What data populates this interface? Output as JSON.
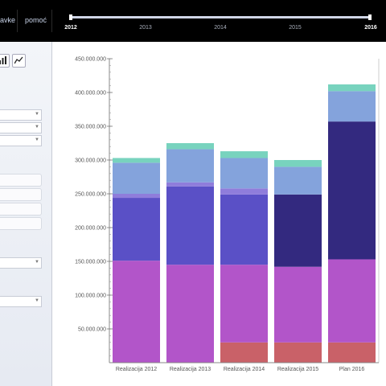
{
  "nav": {
    "item1": "avke",
    "item2": "pomoć"
  },
  "timeline": {
    "years": [
      "2012",
      "2013",
      "2014",
      "2015",
      "2016"
    ],
    "selected_start": "2012",
    "selected_end": "2016"
  },
  "toolbar": {
    "bar_icon": "bar-chart-icon",
    "line_icon": "line-chart-icon"
  },
  "chart_data": {
    "type": "bar",
    "stacked": true,
    "categories": [
      "Realizacija 2012",
      "Realizacija 2013",
      "Realizacija 2014",
      "Realizacija 2015",
      "Plan 2016"
    ],
    "ylim": [
      0,
      450000000
    ],
    "yticks": [
      50000000,
      100000000,
      150000000,
      200000000,
      250000000,
      300000000,
      350000000,
      400000000,
      450000000
    ],
    "ytick_labels": [
      "50.000.000",
      "100.000.000",
      "150.000.000",
      "200.000.000",
      "250.000.000",
      "300.000.000",
      "350.000.000",
      "400.000.000",
      "450.000.000"
    ],
    "grid": false,
    "series": [
      {
        "color": "#c96168",
        "values": [
          0,
          0,
          30000000,
          30000000,
          30000000
        ]
      },
      {
        "color": "#b255c9",
        "values": [
          151000000,
          145000000,
          115000000,
          112000000,
          123000000
        ]
      },
      {
        "color": "#5a50c6",
        "values": [
          93000000,
          116000000,
          104000000,
          0,
          0
        ]
      },
      {
        "color": "#33297f",
        "values": [
          0,
          0,
          0,
          107000000,
          204000000
        ]
      },
      {
        "color": "#8f7ddb",
        "values": [
          6000000,
          6000000,
          9000000,
          0,
          0
        ]
      },
      {
        "color": "#84a3dc",
        "values": [
          46000000,
          49000000,
          45000000,
          41000000,
          45000000
        ]
      },
      {
        "color": "#78d3be",
        "values": [
          7000000,
          9000000,
          10000000,
          10000000,
          10000000
        ]
      }
    ]
  }
}
